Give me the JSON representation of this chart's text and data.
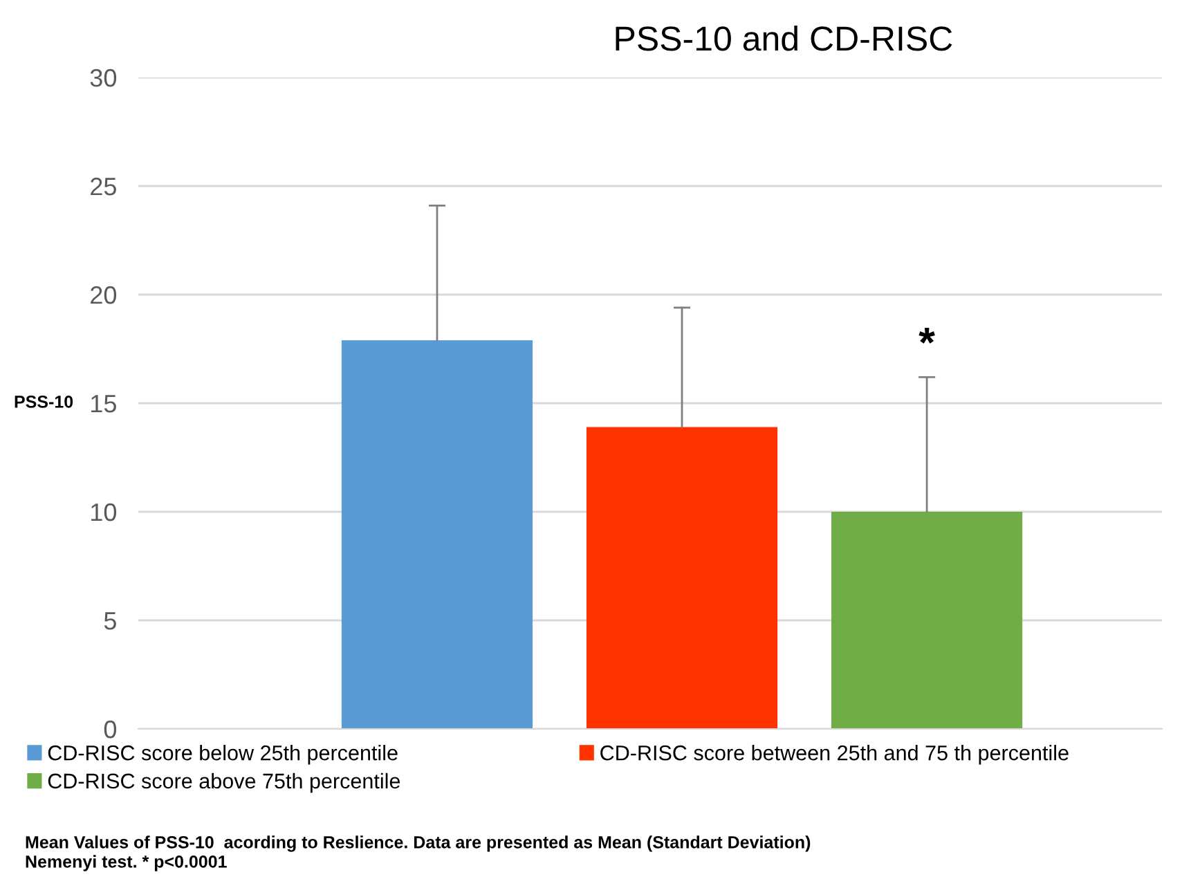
{
  "chart_data": {
    "type": "bar",
    "title": "PSS-10 and CD-RISC",
    "ylabel": "PSS-10",
    "categories": [
      null,
      null,
      null
    ],
    "series": [
      {
        "name": "CD-RISC score below 25th percentile",
        "color": "#5b9bd5",
        "values": [
          17.9,
          null,
          null
        ],
        "errors": [
          [
            17.9,
            24.1
          ],
          null,
          null
        ]
      },
      {
        "name": "CD-RISC score between 25th and 75 th percentile",
        "color": "#ff3300",
        "values": [
          null,
          13.9,
          null
        ],
        "errors": [
          null,
          [
            13.9,
            19.4
          ],
          null
        ]
      },
      {
        "name": "CD-RISC score above 75th percentile",
        "color": "#70ad47",
        "values": [
          null,
          null,
          10.0
        ],
        "errors": [
          null,
          null,
          [
            10.0,
            16.2
          ]
        ]
      }
    ],
    "ylim": [
      0,
      30
    ],
    "yticks": [
      0,
      5,
      10,
      15,
      20,
      25,
      30
    ],
    "grid": "y",
    "legend": "bottom",
    "annotations": [
      "*",
      "Mean Values of PSS-10  acording to Reslience. Data are presented as Mean (Standart Deviation)",
      "Nemenyi test. * p<0.0001"
    ]
  }
}
